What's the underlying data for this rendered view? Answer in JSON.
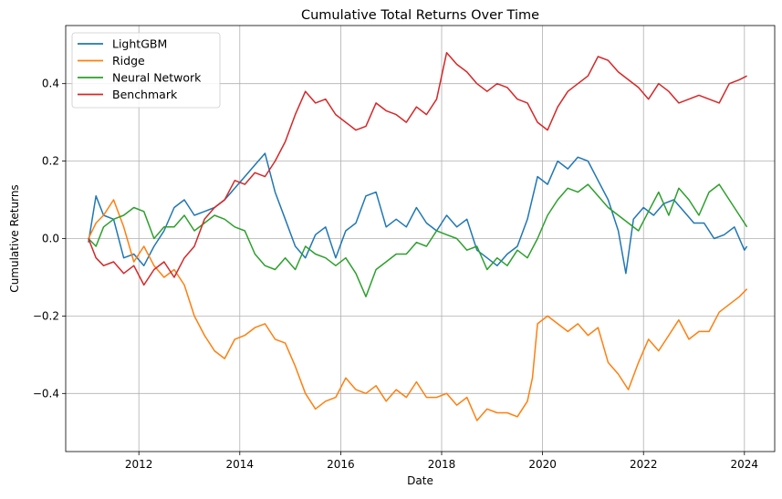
{
  "chart_data": {
    "type": "line",
    "title": "Cumulative Total Returns Over Time",
    "xlabel": "Date",
    "ylabel": "Cumulative Returns",
    "xlim": [
      2010.55,
      2024.6
    ],
    "ylim": [
      -0.55,
      0.55
    ],
    "xticks": [
      2012,
      2014,
      2016,
      2018,
      2020,
      2022,
      2024
    ],
    "xtick_labels": [
      "2012",
      "2014",
      "2016",
      "2018",
      "2020",
      "2022",
      "2024"
    ],
    "yticks": [
      -0.4,
      -0.2,
      0.0,
      0.2,
      0.4
    ],
    "ytick_labels": [
      "−0.4",
      "−0.2",
      "0.0",
      "0.2",
      "0.4"
    ],
    "grid": true,
    "legend_position": "top-left",
    "series": [
      {
        "name": "LightGBM",
        "color": "#1f77b4",
        "x": [
          2011.0,
          2011.15,
          2011.3,
          2011.5,
          2011.7,
          2011.9,
          2012.1,
          2012.3,
          2012.5,
          2012.7,
          2012.9,
          2013.1,
          2013.3,
          2013.5,
          2013.7,
          2013.9,
          2014.1,
          2014.3,
          2014.5,
          2014.7,
          2014.9,
          2015.1,
          2015.3,
          2015.5,
          2015.7,
          2015.9,
          2016.1,
          2016.3,
          2016.5,
          2016.7,
          2016.9,
          2017.1,
          2017.3,
          2017.5,
          2017.7,
          2017.9,
          2018.1,
          2018.3,
          2018.5,
          2018.7,
          2018.9,
          2019.1,
          2019.3,
          2019.5,
          2019.7,
          2019.9,
          2020.1,
          2020.3,
          2020.5,
          2020.7,
          2020.9,
          2021.1,
          2021.3,
          2021.5,
          2021.65,
          2021.8,
          2022.0,
          2022.2,
          2022.4,
          2022.6,
          2022.8,
          2023.0,
          2023.2,
          2023.4,
          2023.6,
          2023.8,
          2024.0,
          2024.05
        ],
        "y": [
          -0.01,
          0.11,
          0.06,
          0.05,
          -0.05,
          -0.04,
          -0.07,
          -0.02,
          0.02,
          0.08,
          0.1,
          0.06,
          0.07,
          0.08,
          0.1,
          0.13,
          0.16,
          0.19,
          0.22,
          0.12,
          0.05,
          -0.02,
          -0.05,
          0.01,
          0.03,
          -0.05,
          0.02,
          0.04,
          0.11,
          0.12,
          0.03,
          0.05,
          0.03,
          0.08,
          0.04,
          0.02,
          0.06,
          0.03,
          0.05,
          -0.03,
          -0.05,
          -0.07,
          -0.04,
          -0.02,
          0.05,
          0.16,
          0.14,
          0.2,
          0.18,
          0.21,
          0.2,
          0.15,
          0.1,
          0.02,
          -0.09,
          0.05,
          0.08,
          0.06,
          0.09,
          0.1,
          0.07,
          0.04,
          0.04,
          0.0,
          0.01,
          0.03,
          -0.03,
          -0.02
        ]
      },
      {
        "name": "Ridge",
        "color": "#ff7f0e",
        "x": [
          2011.0,
          2011.15,
          2011.3,
          2011.5,
          2011.7,
          2011.9,
          2012.1,
          2012.3,
          2012.5,
          2012.7,
          2012.9,
          2013.1,
          2013.3,
          2013.5,
          2013.7,
          2013.9,
          2014.1,
          2014.3,
          2014.5,
          2014.7,
          2014.9,
          2015.1,
          2015.3,
          2015.5,
          2015.7,
          2015.9,
          2016.1,
          2016.3,
          2016.5,
          2016.7,
          2016.9,
          2017.1,
          2017.3,
          2017.5,
          2017.7,
          2017.9,
          2018.1,
          2018.3,
          2018.5,
          2018.7,
          2018.9,
          2019.1,
          2019.3,
          2019.5,
          2019.7,
          2019.8,
          2019.9,
          2020.1,
          2020.3,
          2020.5,
          2020.7,
          2020.9,
          2021.1,
          2021.3,
          2021.5,
          2021.7,
          2021.9,
          2022.1,
          2022.3,
          2022.5,
          2022.7,
          2022.9,
          2023.1,
          2023.3,
          2023.5,
          2023.7,
          2023.9,
          2024.05
        ],
        "y": [
          0.0,
          0.04,
          0.06,
          0.1,
          0.03,
          -0.06,
          -0.02,
          -0.07,
          -0.1,
          -0.08,
          -0.12,
          -0.2,
          -0.25,
          -0.29,
          -0.31,
          -0.26,
          -0.25,
          -0.23,
          -0.22,
          -0.26,
          -0.27,
          -0.33,
          -0.4,
          -0.44,
          -0.42,
          -0.41,
          -0.36,
          -0.39,
          -0.4,
          -0.38,
          -0.42,
          -0.39,
          -0.41,
          -0.37,
          -0.41,
          -0.41,
          -0.4,
          -0.43,
          -0.41,
          -0.47,
          -0.44,
          -0.45,
          -0.45,
          -0.46,
          -0.42,
          -0.36,
          -0.22,
          -0.2,
          -0.22,
          -0.24,
          -0.22,
          -0.25,
          -0.23,
          -0.32,
          -0.35,
          -0.39,
          -0.32,
          -0.26,
          -0.29,
          -0.25,
          -0.21,
          -0.26,
          -0.24,
          -0.24,
          -0.19,
          -0.17,
          -0.15,
          -0.13
        ]
      },
      {
        "name": "Neural Network",
        "color": "#2ca02c",
        "x": [
          2011.0,
          2011.15,
          2011.3,
          2011.5,
          2011.7,
          2011.9,
          2012.1,
          2012.3,
          2012.5,
          2012.7,
          2012.9,
          2013.1,
          2013.3,
          2013.5,
          2013.7,
          2013.9,
          2014.1,
          2014.3,
          2014.5,
          2014.7,
          2014.9,
          2015.1,
          2015.3,
          2015.5,
          2015.7,
          2015.9,
          2016.1,
          2016.3,
          2016.5,
          2016.7,
          2016.9,
          2017.1,
          2017.3,
          2017.5,
          2017.7,
          2017.9,
          2018.1,
          2018.3,
          2018.5,
          2018.7,
          2018.9,
          2019.1,
          2019.3,
          2019.5,
          2019.7,
          2019.9,
          2020.1,
          2020.3,
          2020.5,
          2020.7,
          2020.9,
          2021.1,
          2021.3,
          2021.5,
          2021.7,
          2021.9,
          2022.1,
          2022.3,
          2022.5,
          2022.7,
          2022.9,
          2023.1,
          2023.3,
          2023.5,
          2023.7,
          2023.9,
          2024.05
        ],
        "y": [
          0.0,
          -0.02,
          0.03,
          0.05,
          0.06,
          0.08,
          0.07,
          0.0,
          0.03,
          0.03,
          0.06,
          0.02,
          0.04,
          0.06,
          0.05,
          0.03,
          0.02,
          -0.04,
          -0.07,
          -0.08,
          -0.05,
          -0.08,
          -0.02,
          -0.04,
          -0.05,
          -0.07,
          -0.05,
          -0.09,
          -0.15,
          -0.08,
          -0.06,
          -0.04,
          -0.04,
          -0.01,
          -0.02,
          0.02,
          0.01,
          0.0,
          -0.03,
          -0.02,
          -0.08,
          -0.05,
          -0.07,
          -0.03,
          -0.05,
          0.0,
          0.06,
          0.1,
          0.13,
          0.12,
          0.14,
          0.11,
          0.08,
          0.06,
          0.04,
          0.02,
          0.07,
          0.12,
          0.06,
          0.13,
          0.1,
          0.06,
          0.12,
          0.14,
          0.1,
          0.06,
          0.03
        ]
      },
      {
        "name": "Benchmark",
        "color": "#d62728",
        "x": [
          2011.0,
          2011.15,
          2011.3,
          2011.5,
          2011.7,
          2011.9,
          2012.1,
          2012.3,
          2012.5,
          2012.7,
          2012.9,
          2013.1,
          2013.3,
          2013.5,
          2013.7,
          2013.9,
          2014.1,
          2014.3,
          2014.5,
          2014.7,
          2014.9,
          2015.1,
          2015.3,
          2015.5,
          2015.7,
          2015.9,
          2016.1,
          2016.3,
          2016.5,
          2016.7,
          2016.9,
          2017.1,
          2017.3,
          2017.5,
          2017.7,
          2017.9,
          2018.0,
          2018.1,
          2018.3,
          2018.5,
          2018.7,
          2018.9,
          2019.1,
          2019.3,
          2019.5,
          2019.7,
          2019.9,
          2020.1,
          2020.3,
          2020.5,
          2020.7,
          2020.9,
          2021.1,
          2021.3,
          2021.5,
          2021.7,
          2021.9,
          2022.1,
          2022.3,
          2022.5,
          2022.7,
          2022.9,
          2023.1,
          2023.3,
          2023.5,
          2023.7,
          2023.9,
          2024.05
        ],
        "y": [
          0.0,
          -0.05,
          -0.07,
          -0.06,
          -0.09,
          -0.07,
          -0.12,
          -0.08,
          -0.06,
          -0.1,
          -0.05,
          -0.02,
          0.05,
          0.08,
          0.1,
          0.15,
          0.14,
          0.17,
          0.16,
          0.2,
          0.25,
          0.32,
          0.38,
          0.35,
          0.36,
          0.32,
          0.3,
          0.28,
          0.29,
          0.35,
          0.33,
          0.32,
          0.3,
          0.34,
          0.32,
          0.36,
          0.42,
          0.48,
          0.45,
          0.43,
          0.4,
          0.38,
          0.4,
          0.39,
          0.36,
          0.35,
          0.3,
          0.28,
          0.34,
          0.38,
          0.4,
          0.42,
          0.47,
          0.46,
          0.43,
          0.41,
          0.39,
          0.36,
          0.4,
          0.38,
          0.35,
          0.36,
          0.37,
          0.36,
          0.35,
          0.4,
          0.41,
          0.42
        ]
      }
    ]
  }
}
